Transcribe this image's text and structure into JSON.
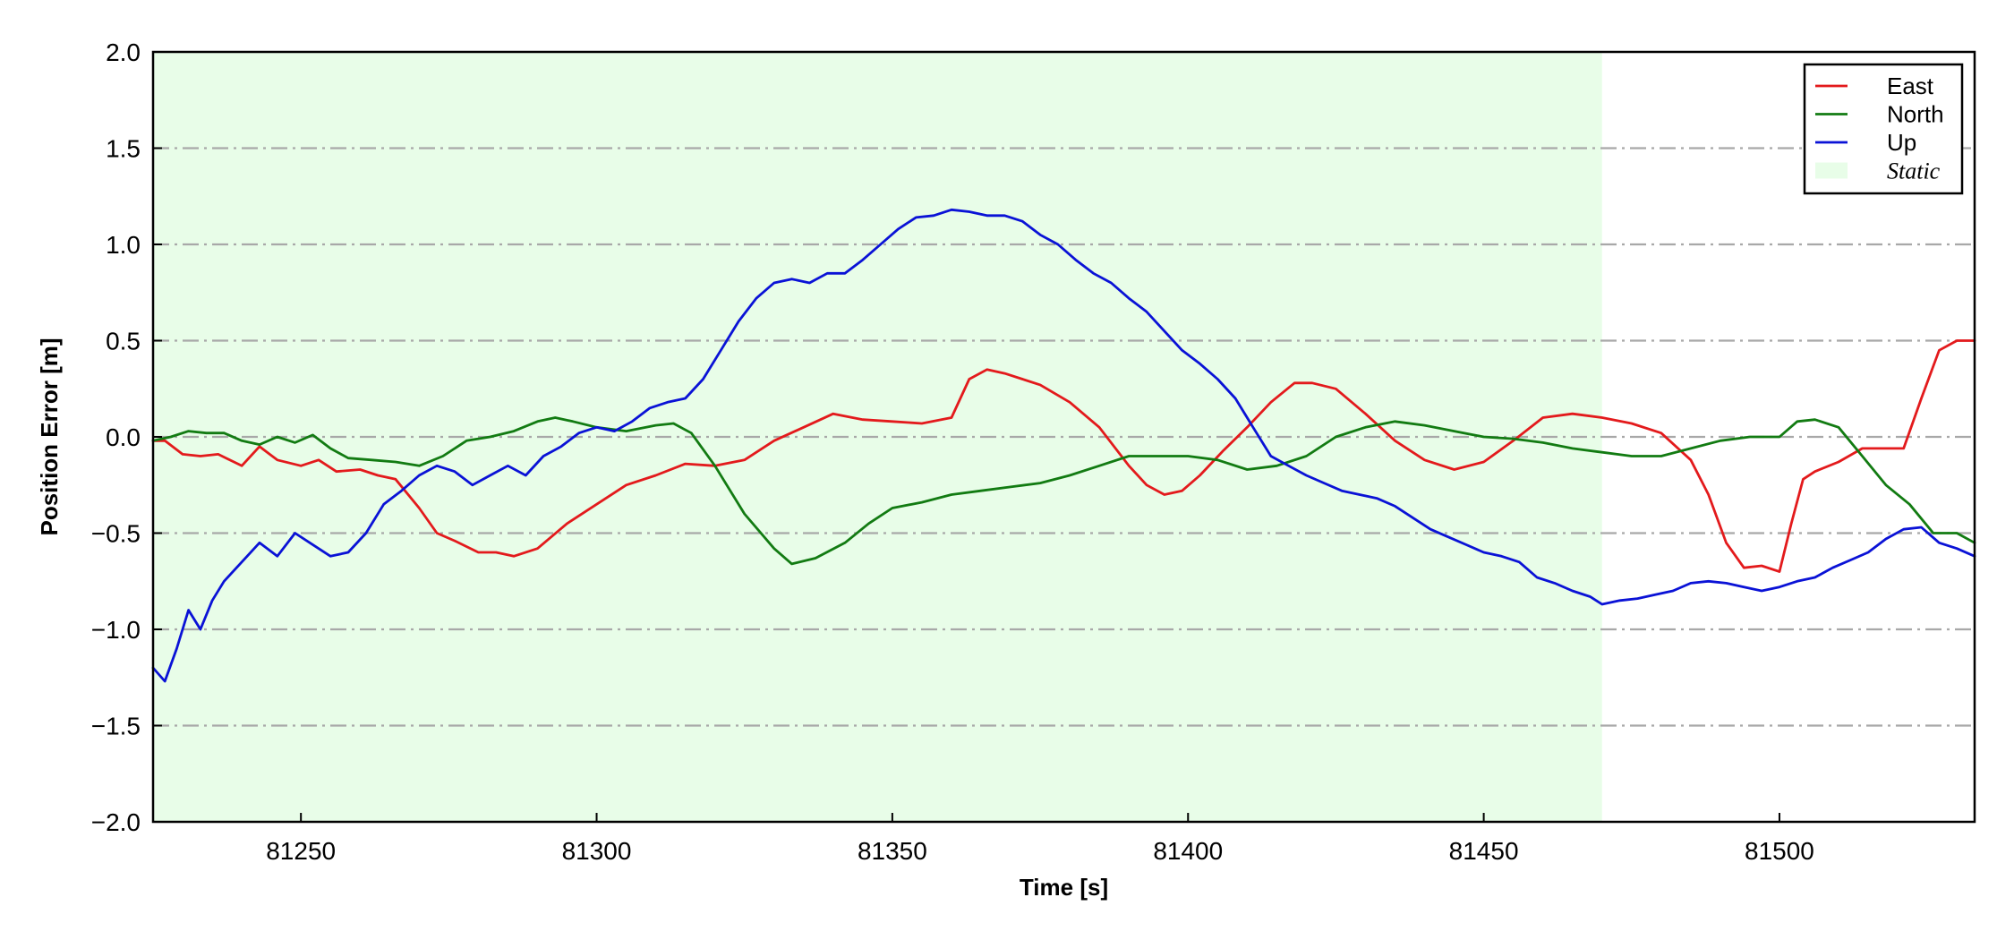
{
  "chart_data": {
    "type": "line",
    "title": "",
    "xlabel": "Time [s]",
    "ylabel": "Position Error [m]",
    "xlim": [
      81225,
      81533
    ],
    "ylim": [
      -2.0,
      2.0
    ],
    "xticks": [
      81250,
      81300,
      81350,
      81400,
      81450,
      81500
    ],
    "xtick_labels": [
      "81250",
      "81300",
      "81350",
      "81400",
      "81450",
      "81500"
    ],
    "yticks": [
      -2.0,
      -1.5,
      -1.0,
      -0.5,
      0.0,
      0.5,
      1.0,
      1.5,
      2.0
    ],
    "ytick_labels": [
      "−2.0",
      "−1.5",
      "−1.0",
      "−0.5",
      "0.0",
      "0.5",
      "1.0",
      "1.5",
      "2.0"
    ],
    "grid": "horizontal dash-dot",
    "legend_position": "top-right",
    "static_region": {
      "label": "Static",
      "x_start": 81225,
      "x_end": 81470,
      "color": "#e8fde8"
    },
    "series": [
      {
        "name": "East",
        "color": "#e31a1c",
        "x": [
          81225,
          81227,
          81230,
          81233,
          81236,
          81240,
          81243,
          81246,
          81250,
          81253,
          81256,
          81260,
          81263,
          81266,
          81270,
          81273,
          81276,
          81280,
          81283,
          81286,
          81290,
          81295,
          81300,
          81305,
          81310,
          81315,
          81320,
          81325,
          81330,
          81335,
          81340,
          81345,
          81350,
          81355,
          81360,
          81363,
          81366,
          81369,
          81372,
          81375,
          81380,
          81385,
          81390,
          81393,
          81396,
          81399,
          81402,
          81406,
          81410,
          81414,
          81418,
          81421,
          81425,
          81430,
          81435,
          81440,
          81445,
          81450,
          81455,
          81460,
          81465,
          81470,
          81475,
          81480,
          81485,
          81488,
          81491,
          81494,
          81497,
          81500,
          81502,
          81504,
          81506,
          81510,
          81514,
          81518,
          81521,
          81524,
          81527,
          81530,
          81533
        ],
        "values": [
          -0.02,
          -0.02,
          -0.09,
          -0.1,
          -0.09,
          -0.15,
          -0.05,
          -0.12,
          -0.15,
          -0.12,
          -0.18,
          -0.17,
          -0.2,
          -0.22,
          -0.37,
          -0.5,
          -0.54,
          -0.6,
          -0.6,
          -0.62,
          -0.58,
          -0.45,
          -0.35,
          -0.25,
          -0.2,
          -0.14,
          -0.15,
          -0.12,
          -0.02,
          0.05,
          0.12,
          0.09,
          0.08,
          0.07,
          0.1,
          0.3,
          0.35,
          0.33,
          0.3,
          0.27,
          0.18,
          0.05,
          -0.15,
          -0.25,
          -0.3,
          -0.28,
          -0.2,
          -0.07,
          0.05,
          0.18,
          0.28,
          0.28,
          0.25,
          0.12,
          -0.02,
          -0.12,
          -0.17,
          -0.13,
          -0.02,
          0.1,
          0.12,
          0.1,
          0.07,
          0.02,
          -0.12,
          -0.3,
          -0.55,
          -0.68,
          -0.67,
          -0.7,
          -0.45,
          -0.22,
          -0.18,
          -0.13,
          -0.06,
          -0.06,
          -0.06,
          0.2,
          0.45,
          0.5,
          0.5
        ]
      },
      {
        "name": "North",
        "color": "#127b12",
        "x": [
          81225,
          81228,
          81231,
          81234,
          81237,
          81240,
          81243,
          81246,
          81249,
          81252,
          81255,
          81258,
          81262,
          81266,
          81270,
          81274,
          81278,
          81282,
          81286,
          81290,
          81293,
          81296,
          81300,
          81305,
          81310,
          81313,
          81316,
          81320,
          81325,
          81330,
          81333,
          81337,
          81342,
          81346,
          81350,
          81355,
          81360,
          81365,
          81370,
          81375,
          81380,
          81385,
          81390,
          81395,
          81400,
          81405,
          81410,
          81415,
          81420,
          81425,
          81430,
          81435,
          81440,
          81445,
          81450,
          81455,
          81460,
          81465,
          81470,
          81475,
          81480,
          81485,
          81490,
          81495,
          81500,
          81503,
          81506,
          81510,
          81514,
          81518,
          81522,
          81526,
          81530,
          81533
        ],
        "values": [
          -0.02,
          0.0,
          0.03,
          0.02,
          0.02,
          -0.02,
          -0.04,
          0.0,
          -0.03,
          0.01,
          -0.06,
          -0.11,
          -0.12,
          -0.13,
          -0.15,
          -0.1,
          -0.02,
          0.0,
          0.03,
          0.08,
          0.1,
          0.08,
          0.05,
          0.03,
          0.06,
          0.07,
          0.02,
          -0.15,
          -0.4,
          -0.58,
          -0.66,
          -0.63,
          -0.55,
          -0.45,
          -0.37,
          -0.34,
          -0.3,
          -0.28,
          -0.26,
          -0.24,
          -0.2,
          -0.15,
          -0.1,
          -0.1,
          -0.1,
          -0.12,
          -0.17,
          -0.15,
          -0.1,
          0.0,
          0.05,
          0.08,
          0.06,
          0.03,
          0.0,
          -0.01,
          -0.03,
          -0.06,
          -0.08,
          -0.1,
          -0.1,
          -0.06,
          -0.02,
          0.0,
          0.0,
          0.08,
          0.09,
          0.05,
          -0.1,
          -0.25,
          -0.35,
          -0.5,
          -0.5,
          -0.55
        ]
      },
      {
        "name": "Up",
        "color": "#0a12d6",
        "x": [
          81225,
          81227,
          81229,
          81231,
          81233,
          81235,
          81237,
          81240,
          81243,
          81246,
          81249,
          81252,
          81255,
          81258,
          81261,
          81264,
          81267,
          81270,
          81273,
          81276,
          81279,
          81282,
          81285,
          81288,
          81291,
          81294,
          81297,
          81300,
          81303,
          81306,
          81309,
          81312,
          81315,
          81318,
          81321,
          81324,
          81327,
          81330,
          81333,
          81336,
          81339,
          81342,
          81345,
          81348,
          81351,
          81354,
          81357,
          81360,
          81363,
          81366,
          81369,
          81372,
          81375,
          81378,
          81381,
          81384,
          81387,
          81390,
          81393,
          81396,
          81399,
          81402,
          81405,
          81408,
          81411,
          81414,
          81417,
          81420,
          81423,
          81426,
          81429,
          81432,
          81435,
          81438,
          81441,
          81444,
          81447,
          81450,
          81453,
          81456,
          81459,
          81462,
          81465,
          81468,
          81470,
          81473,
          81476,
          81479,
          81482,
          81485,
          81488,
          81491,
          81494,
          81497,
          81500,
          81503,
          81506,
          81509,
          81512,
          81515,
          81518,
          81521,
          81524,
          81527,
          81530,
          81533
        ],
        "values": [
          -1.2,
          -1.27,
          -1.1,
          -0.9,
          -1.0,
          -0.85,
          -0.75,
          -0.65,
          -0.55,
          -0.62,
          -0.5,
          -0.56,
          -0.62,
          -0.6,
          -0.5,
          -0.35,
          -0.28,
          -0.2,
          -0.15,
          -0.18,
          -0.25,
          -0.2,
          -0.15,
          -0.2,
          -0.1,
          -0.05,
          0.02,
          0.05,
          0.03,
          0.08,
          0.15,
          0.18,
          0.2,
          0.3,
          0.45,
          0.6,
          0.72,
          0.8,
          0.82,
          0.8,
          0.85,
          0.85,
          0.92,
          1.0,
          1.08,
          1.14,
          1.15,
          1.18,
          1.17,
          1.15,
          1.15,
          1.12,
          1.05,
          1.0,
          0.92,
          0.85,
          0.8,
          0.72,
          0.65,
          0.55,
          0.45,
          0.38,
          0.3,
          0.2,
          0.05,
          -0.1,
          -0.15,
          -0.2,
          -0.24,
          -0.28,
          -0.3,
          -0.32,
          -0.36,
          -0.42,
          -0.48,
          -0.52,
          -0.56,
          -0.6,
          -0.62,
          -0.65,
          -0.73,
          -0.76,
          -0.8,
          -0.83,
          -0.87,
          -0.85,
          -0.84,
          -0.82,
          -0.8,
          -0.76,
          -0.75,
          -0.76,
          -0.78,
          -0.8,
          -0.78,
          -0.75,
          -0.73,
          -0.68,
          -0.64,
          -0.6,
          -0.53,
          -0.48,
          -0.47,
          -0.55,
          -0.58,
          -0.62
        ]
      }
    ]
  }
}
